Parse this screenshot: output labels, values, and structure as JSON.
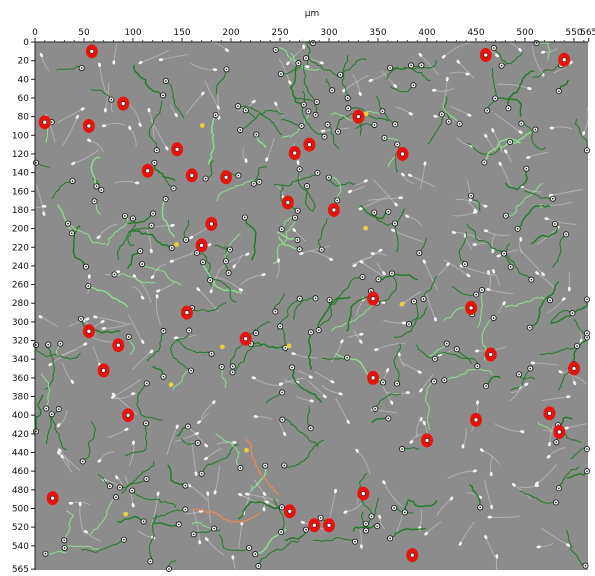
{
  "viewer": {
    "unit_label": "µm",
    "x_ticks": [
      "0",
      "50",
      "100",
      "150",
      "200",
      "250",
      "300",
      "350",
      "400",
      "450",
      "500",
      "550",
      "565"
    ],
    "y_ticks": [
      "0",
      "20",
      "40",
      "60",
      "80",
      "100",
      "120",
      "140",
      "160",
      "180",
      "200",
      "220",
      "240",
      "260",
      "280",
      "300",
      "320",
      "340",
      "360",
      "380",
      "400",
      "420",
      "440",
      "460",
      "480",
      "500",
      "520",
      "540",
      "565"
    ],
    "colors": {
      "background": "#8c8c8c",
      "track": "#1f7a25",
      "track_light": "#8ee08e",
      "cell_marker": "#f2f2f2",
      "selected_cell": "#e8140c",
      "highlight_track": "#e08a5a",
      "small_marker": "#e6d23a"
    }
  },
  "cells": {
    "selected": [
      [
        58,
        10
      ],
      [
        460,
        14
      ],
      [
        540,
        19
      ],
      [
        90,
        66
      ],
      [
        10,
        86
      ],
      [
        55,
        90
      ],
      [
        330,
        80
      ],
      [
        145,
        115
      ],
      [
        265,
        119
      ],
      [
        280,
        110
      ],
      [
        375,
        120
      ],
      [
        115,
        138
      ],
      [
        160,
        143
      ],
      [
        195,
        145
      ],
      [
        258,
        172
      ],
      [
        305,
        180
      ],
      [
        180,
        195
      ],
      [
        170,
        218
      ],
      [
        345,
        275
      ],
      [
        445,
        285
      ],
      [
        155,
        290
      ],
      [
        55,
        310
      ],
      [
        215,
        318
      ],
      [
        85,
        325
      ],
      [
        70,
        352
      ],
      [
        465,
        335
      ],
      [
        345,
        360
      ],
      [
        550,
        350
      ],
      [
        95,
        400
      ],
      [
        450,
        405
      ],
      [
        535,
        418
      ],
      [
        525,
        398
      ],
      [
        400,
        427
      ],
      [
        335,
        484
      ],
      [
        18,
        489
      ],
      [
        260,
        503
      ],
      [
        285,
        518
      ],
      [
        300,
        518
      ],
      [
        385,
        550
      ]
    ]
  }
}
